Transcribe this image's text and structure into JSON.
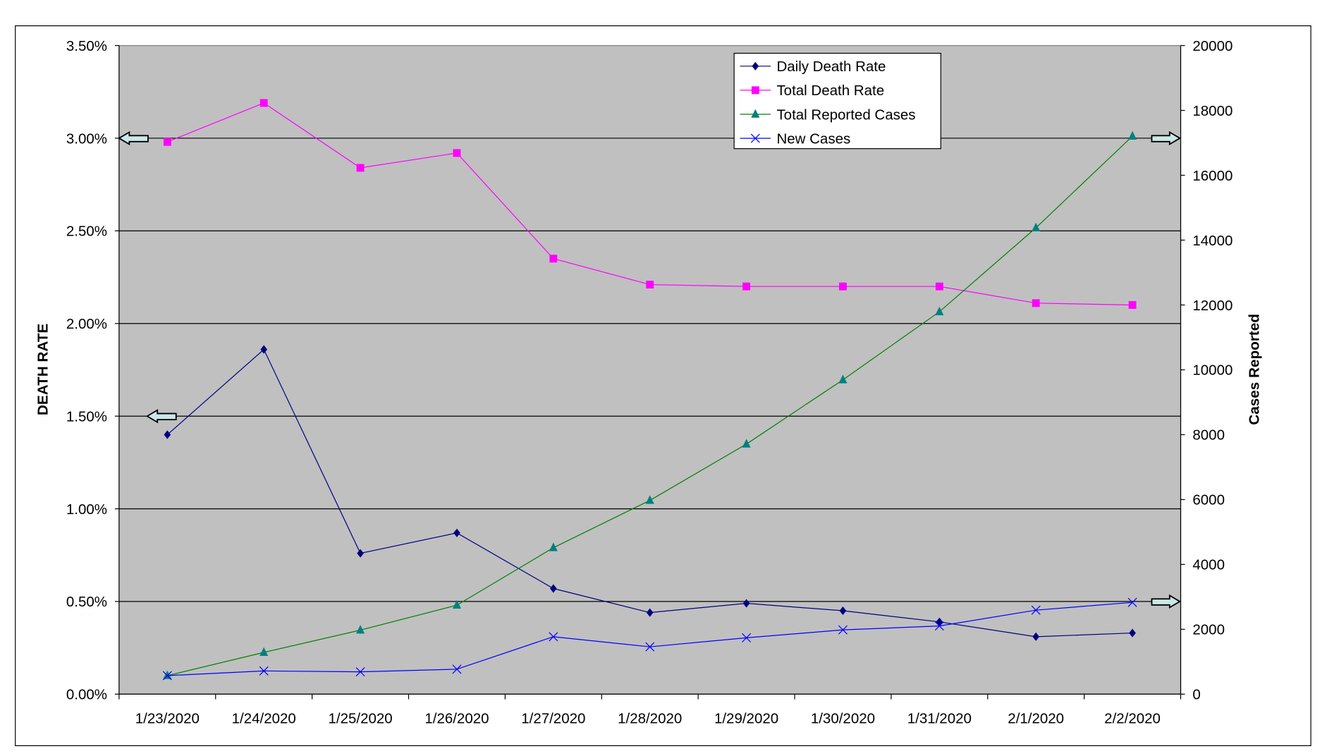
{
  "chart_data": {
    "type": "line",
    "categories": [
      "1/23/2020",
      "1/24/2020",
      "1/25/2020",
      "1/26/2020",
      "1/27/2020",
      "1/28/2020",
      "1/29/2020",
      "1/30/2020",
      "1/31/2020",
      "2/1/2020",
      "2/2/2020"
    ],
    "ylabel": "DEATH RATE",
    "y2label": "Cases Reported",
    "ylim": [
      0,
      3.5
    ],
    "y2lim": [
      0,
      20000
    ],
    "yticks": [
      "0.00%",
      "0.50%",
      "1.00%",
      "1.50%",
      "2.00%",
      "2.50%",
      "3.00%",
      "3.50%"
    ],
    "y2ticks": [
      "0",
      "2000",
      "4000",
      "6000",
      "8000",
      "10000",
      "12000",
      "14000",
      "16000",
      "18000",
      "20000"
    ],
    "grid": true,
    "legend_position": "top-right",
    "plot_background": "#c0c0c0",
    "series": [
      {
        "name": "Daily Death Rate",
        "axis": "left",
        "unit": "%",
        "marker": "diamond",
        "color": "#000080",
        "values": [
          1.4,
          1.86,
          0.76,
          0.87,
          0.57,
          0.44,
          0.49,
          0.45,
          0.39,
          0.31,
          0.33
        ]
      },
      {
        "name": "Total Death Rate",
        "axis": "left",
        "unit": "%",
        "marker": "square",
        "color": "#ff00ff",
        "values": [
          2.98,
          3.19,
          2.84,
          2.92,
          2.35,
          2.21,
          2.2,
          2.2,
          2.2,
          2.11,
          2.1
        ]
      },
      {
        "name": "Total Reported Cases",
        "axis": "right",
        "marker": "triangle",
        "color": "#008080",
        "line_color": "#008000",
        "values": [
          571,
          1287,
          1975,
          2744,
          4515,
          5974,
          7711,
          9692,
          11791,
          14380,
          17205
        ]
      },
      {
        "name": "New Cases",
        "axis": "right",
        "marker": "x",
        "color": "#0000ff",
        "values": [
          571,
          716,
          688,
          769,
          1771,
          1459,
          1737,
          1982,
          2102,
          2590,
          2829
        ]
      }
    ],
    "annotations": [
      {
        "type": "arrow",
        "direction": "left",
        "at_left_value": 3.0
      },
      {
        "type": "arrow",
        "direction": "left",
        "at_left_value": 1.5
      },
      {
        "type": "arrow",
        "direction": "right",
        "at_left_value": 3.0
      },
      {
        "type": "arrow",
        "direction": "right",
        "at_left_value": 0.5
      }
    ]
  }
}
